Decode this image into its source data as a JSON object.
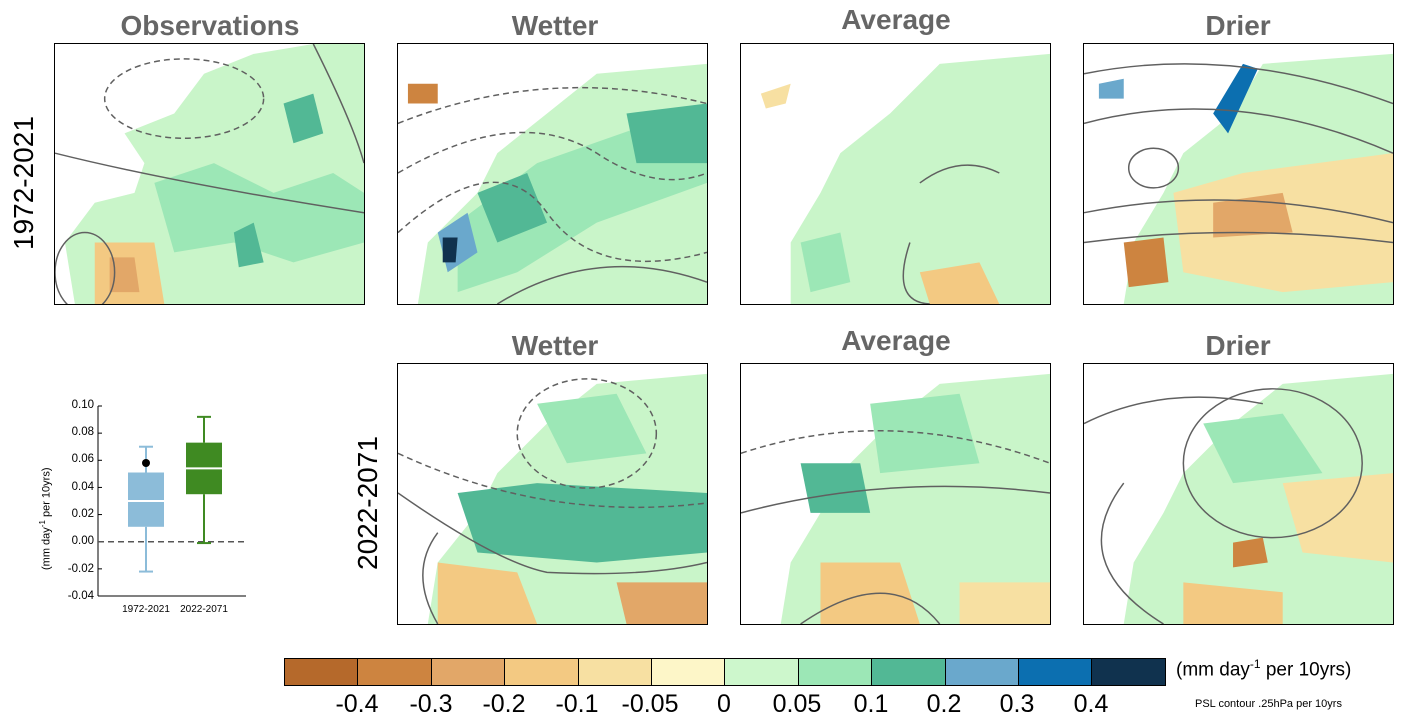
{
  "panels": {
    "observations": "Observations",
    "wetter_top": "Wetter",
    "average_top": "Average",
    "drier_top": "Drier",
    "wetter_bottom": "Wetter",
    "average_bottom": "Average",
    "drier_bottom": "Drier"
  },
  "row_labels": {
    "top": "1972-2021",
    "bottom": "2022-2071"
  },
  "colors": {
    "dry_strong": "#b5692b",
    "neutral": "#fdf6c8",
    "wet_strong": "#10324e",
    "land_base": "#c9f5c9",
    "contour": "#606060",
    "box_obs": "#8cbcd9",
    "box_proj": "#3f8a22"
  },
  "colorbar": {
    "colors": [
      "#b5692b",
      "#cd8440",
      "#e2a768",
      "#f3c982",
      "#f7e0a2",
      "#fdf6c8",
      "#cdf7cc",
      "#9ce7b6",
      "#52b895",
      "#6aa8cc",
      "#0c6fb0",
      "#10324e"
    ],
    "ticks": [
      "-0.4",
      "-0.3",
      "-0.2",
      "-0.1",
      "-0.05",
      "0",
      "0.05",
      "0.1",
      "0.2",
      "0.3",
      "0.4"
    ],
    "units_main": "(mm day",
    "units_exp": "-1",
    "units_tail": " per 10yrs)",
    "psl_note": "PSL contour .25hPa per 10yrs"
  },
  "chart_data": {
    "type": "boxplot",
    "ylabel_main": "(mm day",
    "ylabel_exp": "-1",
    "ylabel_tail": " per 10yrs)",
    "ylim": [
      -0.04,
      0.1
    ],
    "yticks": [
      "0.10",
      "0.08",
      "0.06",
      "0.04",
      "0.02",
      "0.00",
      "-0.02",
      "-0.04"
    ],
    "ytick_values": [
      0.1,
      0.08,
      0.06,
      0.04,
      0.02,
      0.0,
      -0.02,
      -0.04
    ],
    "zero_line": 0.0,
    "categories": [
      "1972-2021",
      "2022-2071"
    ],
    "boxes": [
      {
        "name": "1972-2021",
        "whisker_low": -0.022,
        "q1": 0.011,
        "median": 0.03,
        "q3": 0.051,
        "whisker_high": 0.07,
        "observed_point": 0.058
      },
      {
        "name": "2022-2071",
        "whisker_low": -0.001,
        "q1": 0.035,
        "median": 0.054,
        "q3": 0.073,
        "whisker_high": 0.092
      }
    ]
  }
}
